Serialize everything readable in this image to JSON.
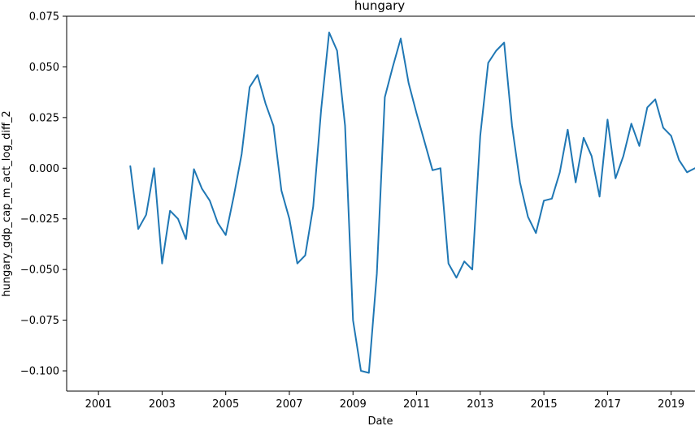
{
  "chart_data": {
    "type": "line",
    "title": "hungary",
    "xlabel": "Date",
    "ylabel": "hungary_gdp_cap_m_act_log_diff_2",
    "grid": false,
    "xlim": [
      2000.0,
      2019.75
    ],
    "ylim": [
      -0.11,
      0.075
    ],
    "x_ticks": [
      2001,
      2003,
      2005,
      2007,
      2009,
      2011,
      2013,
      2015,
      2017,
      2019
    ],
    "y_ticks": [
      -0.1,
      -0.075,
      -0.05,
      -0.025,
      0.0,
      0.025,
      0.05,
      0.075
    ],
    "y_tick_labels": [
      "−0.100",
      "−0.075",
      "−0.050",
      "−0.025",
      "0.000",
      "0.025",
      "0.050",
      "0.075"
    ],
    "series": [
      {
        "color": "#1f77b4",
        "x": [
          2002.0,
          2002.25,
          2002.5,
          2002.75,
          2003.0,
          2003.25,
          2003.5,
          2003.75,
          2004.0,
          2004.25,
          2004.5,
          2004.75,
          2005.0,
          2005.25,
          2005.5,
          2005.75,
          2006.0,
          2006.25,
          2006.5,
          2006.75,
          2007.0,
          2007.25,
          2007.5,
          2007.75,
          2008.0,
          2008.25,
          2008.5,
          2008.75,
          2009.0,
          2009.25,
          2009.5,
          2009.75,
          2010.0,
          2010.25,
          2010.5,
          2010.75,
          2011.0,
          2011.25,
          2011.5,
          2011.75,
          2012.0,
          2012.25,
          2012.5,
          2012.75,
          2013.0,
          2013.25,
          2013.5,
          2013.75,
          2014.0,
          2014.25,
          2014.5,
          2014.75,
          2015.0,
          2015.25,
          2015.5,
          2015.75,
          2016.0,
          2016.25,
          2016.5,
          2016.75,
          2017.0,
          2017.25,
          2017.5,
          2017.75,
          2018.0,
          2018.25,
          2018.5,
          2018.75,
          2019.0,
          2019.25,
          2019.5,
          2019.75
        ],
        "values": [
          0.001,
          -0.03,
          -0.023,
          0.0,
          -0.047,
          -0.021,
          -0.025,
          -0.035,
          -0.0005,
          -0.01,
          -0.016,
          -0.027,
          -0.033,
          -0.014,
          0.007,
          0.04,
          0.046,
          0.032,
          0.021,
          -0.011,
          -0.025,
          -0.047,
          -0.043,
          -0.019,
          0.029,
          0.067,
          0.058,
          0.021,
          -0.075,
          -0.1,
          -0.101,
          -0.052,
          0.035,
          0.05,
          0.064,
          0.042,
          0.027,
          0.013,
          -0.001,
          0.0,
          -0.047,
          -0.054,
          -0.046,
          -0.05,
          0.016,
          0.052,
          0.058,
          0.062,
          0.021,
          -0.007,
          -0.024,
          -0.032,
          -0.016,
          -0.015,
          -0.002,
          0.019,
          -0.007,
          0.015,
          0.006,
          -0.014,
          0.024,
          -0.005,
          0.006,
          0.022,
          0.011,
          0.03,
          0.034,
          0.02,
          0.016,
          0.004,
          -0.002,
          0.0
        ]
      }
    ]
  }
}
